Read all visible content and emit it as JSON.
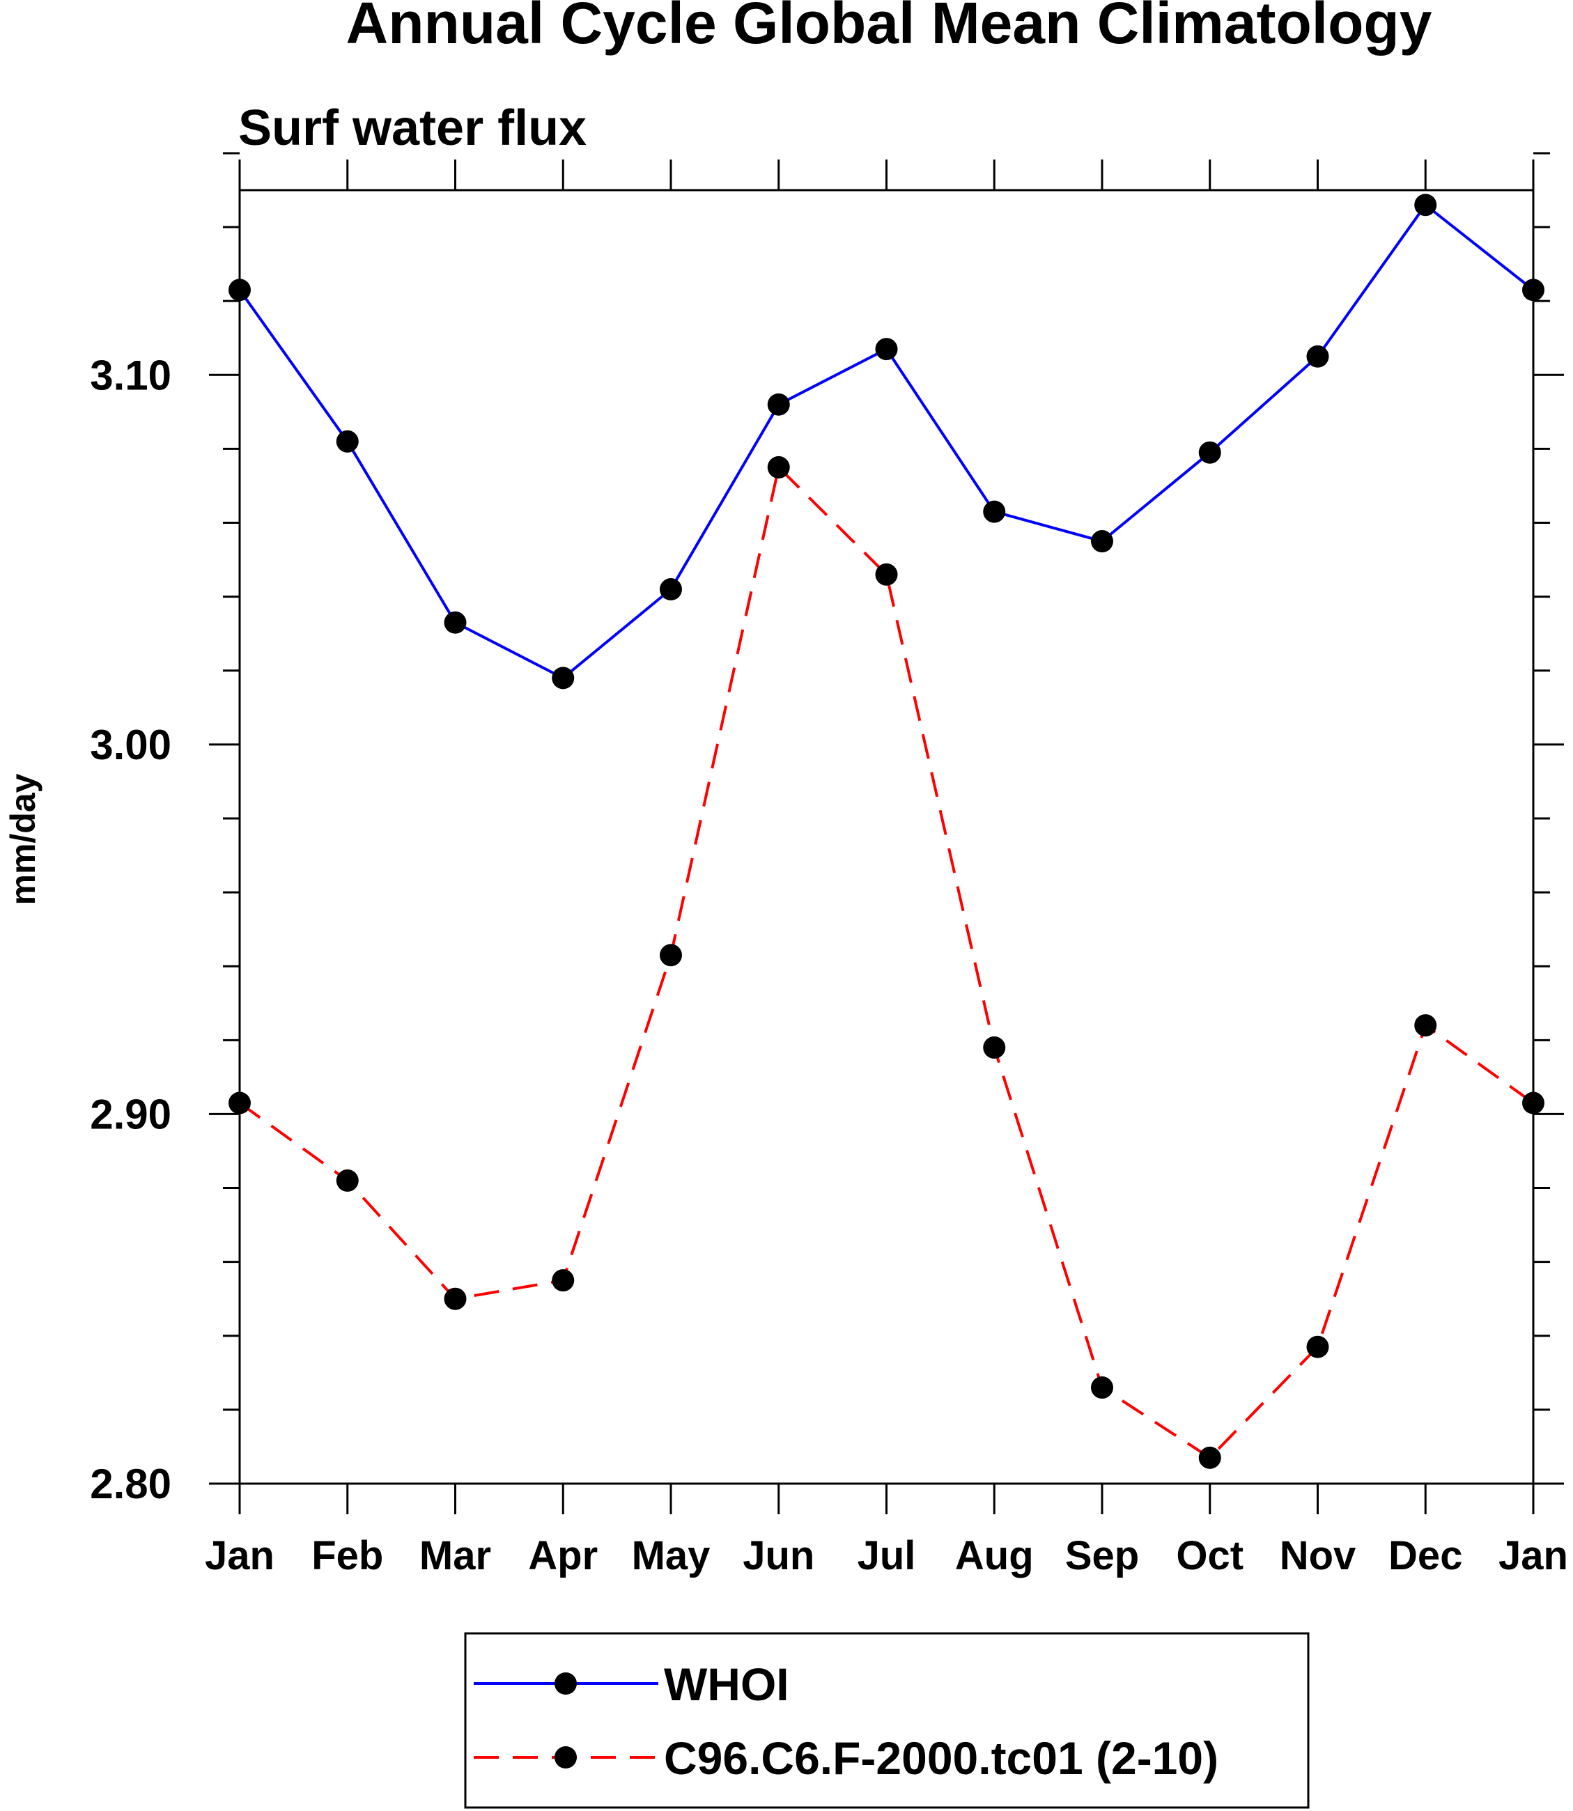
{
  "chart_data": {
    "type": "line",
    "title": "Annual Cycle Global Mean Climatology",
    "subtitle": "Surf water flux",
    "xlabel": "",
    "ylabel": "mm/day",
    "categories": [
      "Jan",
      "Feb",
      "Mar",
      "Apr",
      "May",
      "Jun",
      "Jul",
      "Aug",
      "Sep",
      "Oct",
      "Nov",
      "Dec",
      "Jan"
    ],
    "ylim": [
      2.8,
      3.15
    ],
    "yticks": [
      2.8,
      2.9,
      3.0,
      3.1
    ],
    "ytick_labels": [
      "2.80",
      "2.90",
      "3.00",
      "3.10"
    ],
    "yminor_step": 0.02,
    "grid": false,
    "legend_position": "bottom-center",
    "series": [
      {
        "name": "WHOI",
        "color": "#0000ff",
        "style": "solid",
        "marker": "circle",
        "values": [
          3.123,
          3.082,
          3.033,
          3.018,
          3.042,
          3.092,
          3.107,
          3.063,
          3.055,
          3.079,
          3.105,
          3.146,
          3.123
        ]
      },
      {
        "name": "C96.C6.F-2000.tc01 (2-10)",
        "color": "#ff0000",
        "style": "dashed",
        "marker": "circle",
        "values": [
          2.903,
          2.882,
          2.85,
          2.855,
          2.943,
          3.075,
          3.046,
          2.918,
          2.826,
          2.807,
          2.837,
          2.924,
          2.903
        ]
      }
    ]
  }
}
